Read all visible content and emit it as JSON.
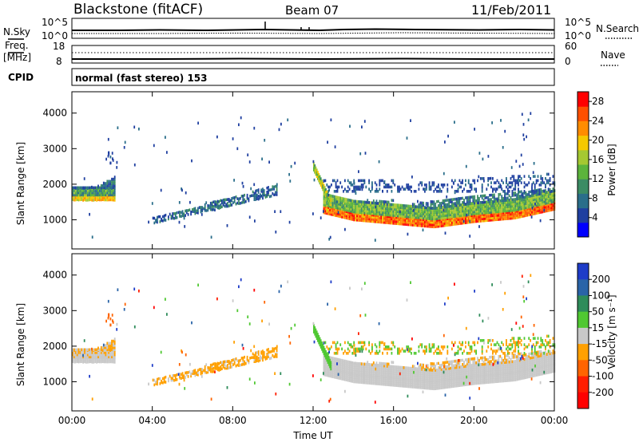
{
  "header": {
    "station": "Blackstone (fitACF)",
    "beam": "Beam 07",
    "date": "11/Feb/2011"
  },
  "panels": {
    "nsky_label": "N.Sky",
    "nsearch_label": "N.Search",
    "freq_label": "Freq.",
    "freq_unit": "[MHz]",
    "nave_label": "Nave",
    "cpid_label": "CPID",
    "cpid_text": "normal (fast stereo) 153",
    "noise_ticks_left": [
      "10^5",
      "10^0"
    ],
    "noise_ticks_right": [
      "10^5",
      "10^0"
    ],
    "freq_ticks": [
      "18",
      "8"
    ],
    "nave_ticks": [
      "60",
      "0"
    ]
  },
  "chart_data": [
    {
      "type": "heatmap",
      "name": "power",
      "ylabel": "Slant Range [km]",
      "xlabel": "Time UT",
      "x_ticks": [
        "00:00",
        "04:00",
        "08:00",
        "12:00",
        "16:00",
        "20:00",
        "00:00"
      ],
      "xlim": [
        0,
        24
      ],
      "ylim": [
        180,
        4600
      ],
      "y_ticks": [
        1000,
        2000,
        3000,
        4000
      ],
      "colorbar": {
        "label": "Power [dB]",
        "ticks": [
          4,
          8,
          12,
          16,
          20,
          24,
          28
        ],
        "range": [
          0,
          30
        ],
        "colors": [
          "#0000ff",
          "#1f3fa0",
          "#2a6e8a",
          "#3c8c64",
          "#5cb43c",
          "#a5c832",
          "#f5c800",
          "#ff8c00",
          "#ff5000",
          "#ff0000"
        ]
      },
      "features": [
        {
          "name": "early band",
          "t": [
            0.0,
            2.1
          ],
          "range_km": [
            1550,
            2050
          ],
          "power_db": [
            6,
            22
          ]
        },
        {
          "name": "rising streak",
          "t": [
            4.0,
            10.2
          ],
          "range_km": [
            900,
            1950
          ],
          "power_db": [
            4,
            12
          ]
        },
        {
          "name": "main band",
          "t": [
            12.5,
            24.0
          ],
          "range_km": [
            750,
            2200
          ],
          "power_db": [
            4,
            28
          ]
        }
      ]
    },
    {
      "type": "heatmap",
      "name": "velocity",
      "ylabel": "Slant Range [km]",
      "xlabel": "Time UT",
      "x_ticks": [
        "00:00",
        "04:00",
        "08:00",
        "12:00",
        "16:00",
        "20:00",
        "00:00"
      ],
      "xlim": [
        0,
        24
      ],
      "ylim": [
        180,
        4600
      ],
      "y_ticks": [
        1000,
        2000,
        3000,
        4000
      ],
      "colorbar": {
        "label": "Velocity [m s⁻¹]",
        "ticks": [
          "200",
          "100",
          "50",
          "15",
          "-15",
          "-50",
          "-100",
          "-200"
        ],
        "colors": [
          "#1e3cc8",
          "#2a64a8",
          "#2e8c5a",
          "#50c832",
          "#c8c8c8",
          "#ffa000",
          "#ff6400",
          "#ff1e00",
          "#ff0000"
        ]
      },
      "features": [
        {
          "name": "early band",
          "t": [
            0.0,
            2.1
          ],
          "range_km": [
            1550,
            1850
          ],
          "velocity": "ground scatter (grey)"
        },
        {
          "name": "rising streak",
          "t": [
            4.0,
            10.2
          ],
          "range_km": [
            900,
            1900
          ],
          "velocity": "-15 to -50 (orange)"
        },
        {
          "name": "main band",
          "t": [
            12.5,
            24.0
          ],
          "range_km": [
            750,
            1650
          ],
          "velocity": "ground scatter (grey)"
        }
      ]
    }
  ]
}
